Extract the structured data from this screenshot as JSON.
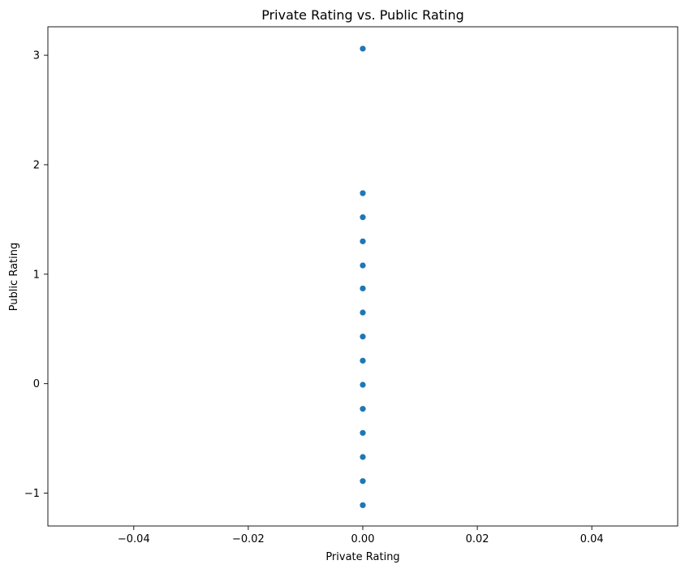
{
  "chart_data": {
    "type": "scatter",
    "title": "Private Rating vs. Public Rating",
    "xlabel": "Private Rating",
    "ylabel": "Public Rating",
    "xlim": [
      -0.055,
      0.055
    ],
    "ylim": [
      -1.3,
      3.26
    ],
    "xticks": [
      -0.04,
      -0.02,
      0.0,
      0.02,
      0.04
    ],
    "xtick_labels": [
      "−0.04",
      "−0.02",
      "0.00",
      "0.02",
      "0.04"
    ],
    "yticks": [
      -1,
      0,
      1,
      2,
      3
    ],
    "ytick_labels": [
      "−1",
      "0",
      "1",
      "2",
      "3"
    ],
    "grid": false,
    "marker_color": "#1f77b4",
    "points": [
      {
        "x": 0.0,
        "y": 3.06
      },
      {
        "x": 0.0,
        "y": 1.74
      },
      {
        "x": 0.0,
        "y": 1.52
      },
      {
        "x": 0.0,
        "y": 1.3
      },
      {
        "x": 0.0,
        "y": 1.08
      },
      {
        "x": 0.0,
        "y": 0.87
      },
      {
        "x": 0.0,
        "y": 0.65
      },
      {
        "x": 0.0,
        "y": 0.43
      },
      {
        "x": 0.0,
        "y": 0.21
      },
      {
        "x": 0.0,
        "y": -0.01
      },
      {
        "x": 0.0,
        "y": -0.23
      },
      {
        "x": 0.0,
        "y": -0.45
      },
      {
        "x": 0.0,
        "y": -0.67
      },
      {
        "x": 0.0,
        "y": -0.89
      },
      {
        "x": 0.0,
        "y": -1.11
      }
    ]
  }
}
